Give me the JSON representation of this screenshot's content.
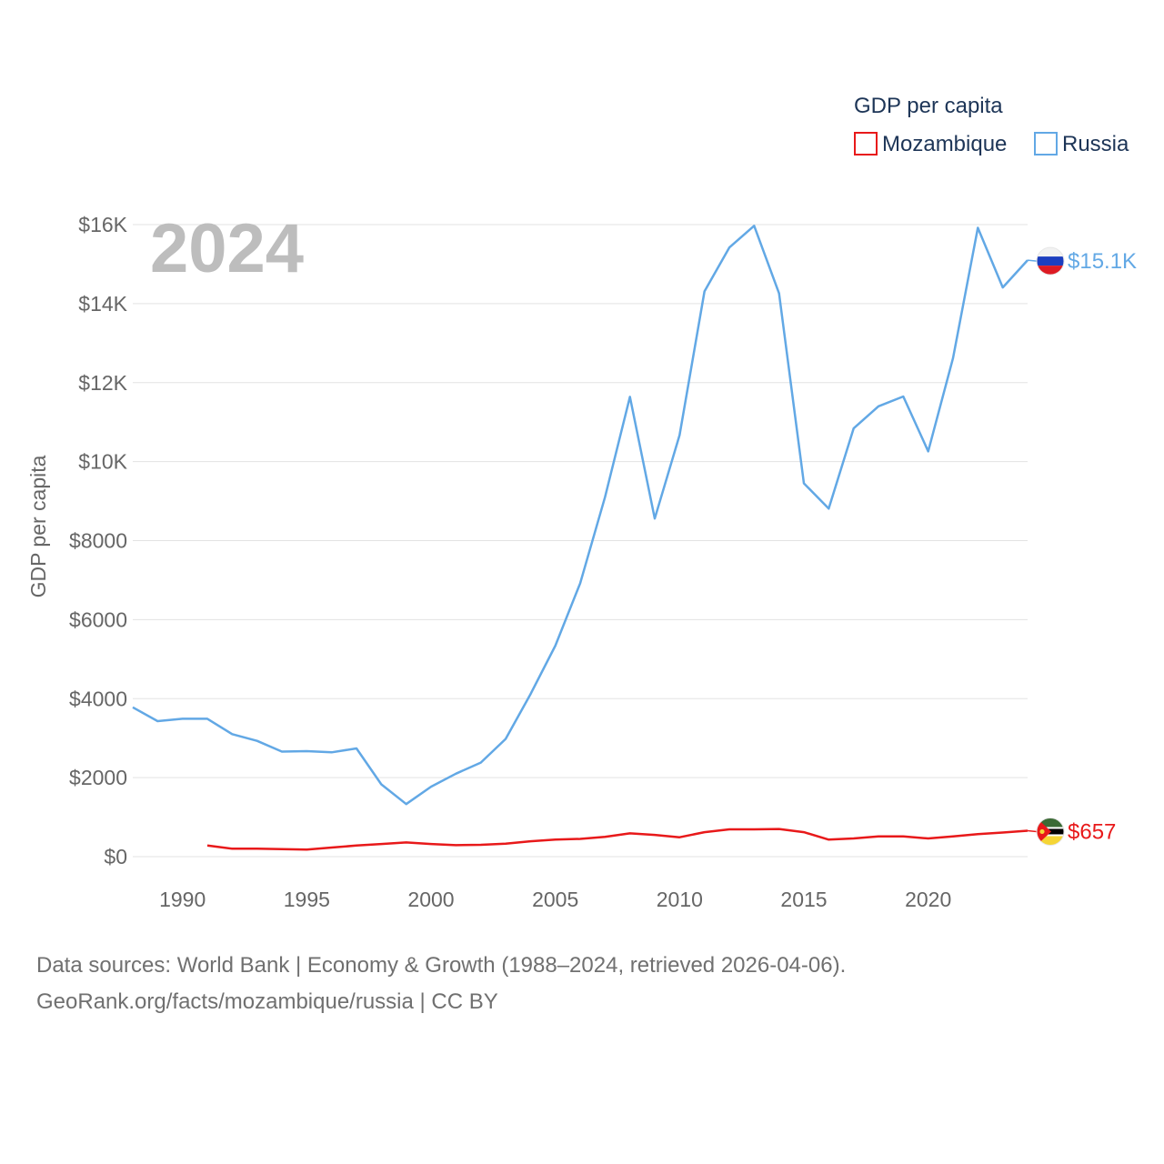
{
  "chart_data": {
    "type": "line",
    "title": "GDP per capita",
    "current_year": "2024",
    "ylabel": "GDP per capita",
    "xlabel": "",
    "xlim": [
      1988,
      2024
    ],
    "ylim": [
      0,
      16000
    ],
    "grid": true,
    "legend_placement": "top-right",
    "y_ticks": [
      {
        "value": 0,
        "label": "$0"
      },
      {
        "value": 2000,
        "label": "$2000"
      },
      {
        "value": 4000,
        "label": "$4000"
      },
      {
        "value": 6000,
        "label": "$6000"
      },
      {
        "value": 8000,
        "label": "$8000"
      },
      {
        "value": 10000,
        "label": "$10K"
      },
      {
        "value": 12000,
        "label": "$12K"
      },
      {
        "value": 14000,
        "label": "$14K"
      },
      {
        "value": 16000,
        "label": "$16K"
      }
    ],
    "x_ticks": [
      {
        "value": 1990,
        "label": "1990"
      },
      {
        "value": 1995,
        "label": "1995"
      },
      {
        "value": 2000,
        "label": "2000"
      },
      {
        "value": 2005,
        "label": "2005"
      },
      {
        "value": 2010,
        "label": "2010"
      },
      {
        "value": 2015,
        "label": "2015"
      },
      {
        "value": 2020,
        "label": "2020"
      }
    ],
    "series": [
      {
        "name": "Mozambique",
        "color": "#e8191a",
        "end_label": "$657",
        "flag_icon": "mozambique-flag-icon",
        "flag_colors": [
          "#3b6b35",
          "#000000",
          "#f5d535",
          "#e8191a",
          "#ffffff"
        ],
        "points": [
          [
            1991,
            280
          ],
          [
            1992,
            200
          ],
          [
            1993,
            200
          ],
          [
            1994,
            190
          ],
          [
            1995,
            180
          ],
          [
            1996,
            230
          ],
          [
            1997,
            280
          ],
          [
            1998,
            320
          ],
          [
            1999,
            360
          ],
          [
            2000,
            320
          ],
          [
            2001,
            290
          ],
          [
            2002,
            300
          ],
          [
            2003,
            330
          ],
          [
            2004,
            390
          ],
          [
            2005,
            430
          ],
          [
            2006,
            450
          ],
          [
            2007,
            500
          ],
          [
            2008,
            590
          ],
          [
            2009,
            550
          ],
          [
            2010,
            490
          ],
          [
            2011,
            620
          ],
          [
            2012,
            690
          ],
          [
            2013,
            690
          ],
          [
            2014,
            700
          ],
          [
            2015,
            620
          ],
          [
            2016,
            430
          ],
          [
            2017,
            460
          ],
          [
            2018,
            510
          ],
          [
            2019,
            510
          ],
          [
            2020,
            460
          ],
          [
            2021,
            510
          ],
          [
            2022,
            570
          ],
          [
            2023,
            610
          ],
          [
            2024,
            657
          ]
        ]
      },
      {
        "name": "Russia",
        "color": "#62a8e5",
        "end_label": "$15.1K",
        "flag_icon": "russia-flag-icon",
        "flag_colors": [
          "#f2f2f2",
          "#1c3fbf",
          "#dd1a23"
        ],
        "points": [
          [
            1988,
            3780
          ],
          [
            1989,
            3430
          ],
          [
            1990,
            3490
          ],
          [
            1991,
            3490
          ],
          [
            1992,
            3100
          ],
          [
            1993,
            2930
          ],
          [
            1994,
            2660
          ],
          [
            1995,
            2670
          ],
          [
            1996,
            2640
          ],
          [
            1997,
            2740
          ],
          [
            1998,
            1830
          ],
          [
            1999,
            1330
          ],
          [
            2000,
            1770
          ],
          [
            2001,
            2100
          ],
          [
            2002,
            2380
          ],
          [
            2003,
            2980
          ],
          [
            2004,
            4110
          ],
          [
            2005,
            5340
          ],
          [
            2006,
            6920
          ],
          [
            2007,
            9100
          ],
          [
            2008,
            11640
          ],
          [
            2009,
            8560
          ],
          [
            2010,
            10670
          ],
          [
            2011,
            14310
          ],
          [
            2012,
            15420
          ],
          [
            2013,
            15970
          ],
          [
            2014,
            14260
          ],
          [
            2015,
            9450
          ],
          [
            2016,
            8810
          ],
          [
            2017,
            10840
          ],
          [
            2018,
            11400
          ],
          [
            2019,
            11650
          ],
          [
            2020,
            10260
          ],
          [
            2021,
            12620
          ],
          [
            2022,
            15920
          ],
          [
            2023,
            14410
          ],
          [
            2024,
            15100
          ]
        ]
      }
    ]
  },
  "footer": {
    "line1": "Data sources: World Bank | Economy & Growth (1988–2024, retrieved 2026-04-06).",
    "line2": "GeoRank.org/facts/mozambique/russia | CC BY"
  }
}
